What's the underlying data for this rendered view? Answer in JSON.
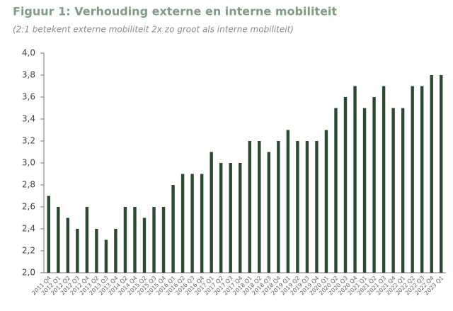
{
  "chart_data": {
    "type": "bar",
    "title": "Figuur 1: Verhouding externe en interne mobiliteit",
    "subtitle": "(2:1 betekent externe mobiliteit 2x zo groot als interne mobiliteit)",
    "categories": [
      "2011 Q4",
      "2012 Q1",
      "2012 Q2",
      "2012 Q3",
      "2012 Q4",
      "2013 Q2",
      "2013 Q3",
      "2013 Q4",
      "2014 Q2",
      "2014 Q4",
      "2015 Q2",
      "2015 Q3",
      "2015 Q4",
      "2016 Q1",
      "2016 Q2",
      "2016 Q3",
      "2016 Q4",
      "2017 Q1",
      "2017 Q2",
      "2017 Q3",
      "2017 Q4",
      "2018 Q1",
      "2018 Q2",
      "2018 Q3",
      "2018 Q4",
      "2019 Q1",
      "2019 Q2",
      "2019 Q3",
      "2019 Q4",
      "2020 Q1",
      "2020 Q2",
      "2020 Q3",
      "2020 Q4",
      "2021 Q1",
      "2021 Q2",
      "2021 Q3",
      "2021 Q4",
      "2022 Q1",
      "2022 Q2",
      "2022 Q3",
      "2022 Q4",
      "2023 Q1"
    ],
    "values": [
      2.7,
      2.6,
      2.5,
      2.4,
      2.6,
      2.4,
      2.3,
      2.4,
      2.6,
      2.6,
      2.5,
      2.6,
      2.6,
      2.8,
      2.9,
      2.9,
      2.9,
      3.1,
      3.0,
      3.0,
      3.0,
      3.2,
      3.2,
      3.1,
      3.2,
      3.3,
      3.2,
      3.2,
      3.2,
      3.3,
      3.5,
      3.6,
      3.7,
      3.5,
      3.6,
      3.7,
      3.5,
      3.5,
      3.7,
      3.7,
      3.8,
      3.8
    ],
    "color": "#2c4a30",
    "ylim": [
      2.0,
      4.0
    ],
    "yticks": [
      {
        "value": 2.0,
        "label": "2,0"
      },
      {
        "value": 2.2,
        "label": "2,2"
      },
      {
        "value": 2.4,
        "label": "2,4"
      },
      {
        "value": 2.6,
        "label": "2,6"
      },
      {
        "value": 2.8,
        "label": "2,8"
      },
      {
        "value": 3.0,
        "label": "3,0"
      },
      {
        "value": 3.2,
        "label": "3,2"
      },
      {
        "value": 3.4,
        "label": "3,4"
      },
      {
        "value": 3.6,
        "label": "3,6"
      },
      {
        "value": 3.8,
        "label": "3,8"
      },
      {
        "value": 4.0,
        "label": "4,0"
      }
    ],
    "grid": false
  }
}
